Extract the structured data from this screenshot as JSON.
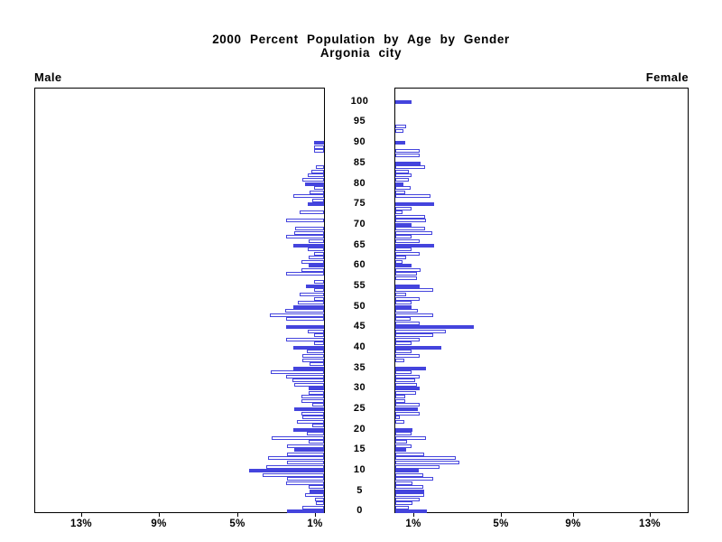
{
  "title": {
    "line1": "2000 Percent Population by Age by Gender",
    "line2": "Argonia city"
  },
  "side_labels": {
    "left": "Male",
    "right": "Female"
  },
  "chart_data": {
    "type": "bar",
    "subtype": "population-pyramid",
    "title": "2000 Percent Population by Age by Gender",
    "subtitle": "Argonia city",
    "orientation": "horizontal, male bars extend left, female bars extend right",
    "age_axis": {
      "min": 0,
      "max": 100,
      "label_step": 5,
      "tick_labels_top_to_bottom": [
        "100",
        "95",
        "90",
        "85",
        "80",
        "75",
        "70",
        "65",
        "60",
        "55",
        "50",
        "45",
        "40",
        "35",
        "30",
        "25",
        "20",
        "15",
        "10",
        "5",
        "0"
      ]
    },
    "x_axis": {
      "unit": "percent of population",
      "max_percent": 15,
      "male_tick_labels": [
        "13%",
        "9%",
        "5%",
        "1%"
      ],
      "female_tick_labels": [
        "1%",
        "5%",
        "9%",
        "13%"
      ]
    },
    "style": {
      "solid_rule": "bars for ages divisible by 5 are solid filled; other ages are hollow with blue outline",
      "solid_fill": "#4444dd",
      "outline": "#4444dd",
      "hollow_fill": "#ffffff",
      "frame": "#000000",
      "background": "#ffffff"
    },
    "series": [
      {
        "name": "Male",
        "ages": "index equals age 0..100",
        "values_percent": [
          1.9,
          1.1,
          0.4,
          0.45,
          1.0,
          0.75,
          0.8,
          1.95,
          1.9,
          3.15,
          3.85,
          3.0,
          1.9,
          2.9,
          1.9,
          1.55,
          1.9,
          0.8,
          2.7,
          0.9,
          1.6,
          0.6,
          1.4,
          1.1,
          1.15,
          1.55,
          0.6,
          1.15,
          1.15,
          0.8,
          0.8,
          1.55,
          1.65,
          1.95,
          2.75,
          1.6,
          0.75,
          1.1,
          1.1,
          0.9,
          1.6,
          0.5,
          1.95,
          0.5,
          0.85,
          1.95,
          0,
          1.95,
          2.8,
          2.0,
          1.6,
          1.35,
          0.5,
          1.25,
          0.5,
          0.95,
          0.5,
          0,
          1.95,
          1.15,
          0.8,
          1.15,
          0.8,
          0.5,
          0.85,
          1.6,
          0.8,
          1.95,
          1.55,
          1.5,
          0,
          1.95,
          0,
          1.25,
          0,
          0.85,
          0.6,
          1.6,
          0.75,
          0.5,
          1.0,
          1.1,
          0.85,
          0.65,
          0.4,
          0,
          0,
          0,
          0.5,
          0.5,
          0.5,
          0,
          0,
          0,
          0,
          0,
          0,
          0,
          0,
          0,
          0
        ]
      },
      {
        "name": "Female",
        "ages": "index equals age 0..100",
        "values_percent": [
          1.65,
          0.7,
          0.9,
          1.25,
          1.5,
          1.5,
          1.45,
          0.9,
          1.95,
          1.45,
          1.2,
          2.3,
          3.3,
          3.1,
          1.5,
          0.55,
          0.85,
          0.6,
          1.6,
          0.85,
          0.9,
          0,
          0.45,
          0.25,
          1.25,
          1.15,
          1.25,
          0.5,
          0.5,
          1.05,
          1.25,
          1.1,
          1.0,
          1.25,
          0.85,
          1.6,
          0,
          0.45,
          1.25,
          0.85,
          2.35,
          0.85,
          1.25,
          1.95,
          2.6,
          4.05,
          1.25,
          0.8,
          1.95,
          1.15,
          0.85,
          0.85,
          1.25,
          0.55,
          1.95,
          1.25,
          0,
          1.1,
          1.1,
          1.3,
          0.85,
          0.35,
          0.55,
          1.25,
          0.85,
          2.0,
          1.25,
          0.85,
          1.9,
          1.55,
          0.85,
          1.6,
          1.55,
          0.35,
          0.85,
          2.0,
          0,
          1.8,
          0.5,
          0.8,
          0.4,
          0.7,
          0.85,
          0.7,
          1.55,
          1.3,
          0,
          1.25,
          1.25,
          0,
          0.5,
          0,
          0,
          0.4,
          0.55,
          0,
          0,
          0,
          0,
          0,
          0.85
        ]
      }
    ]
  }
}
